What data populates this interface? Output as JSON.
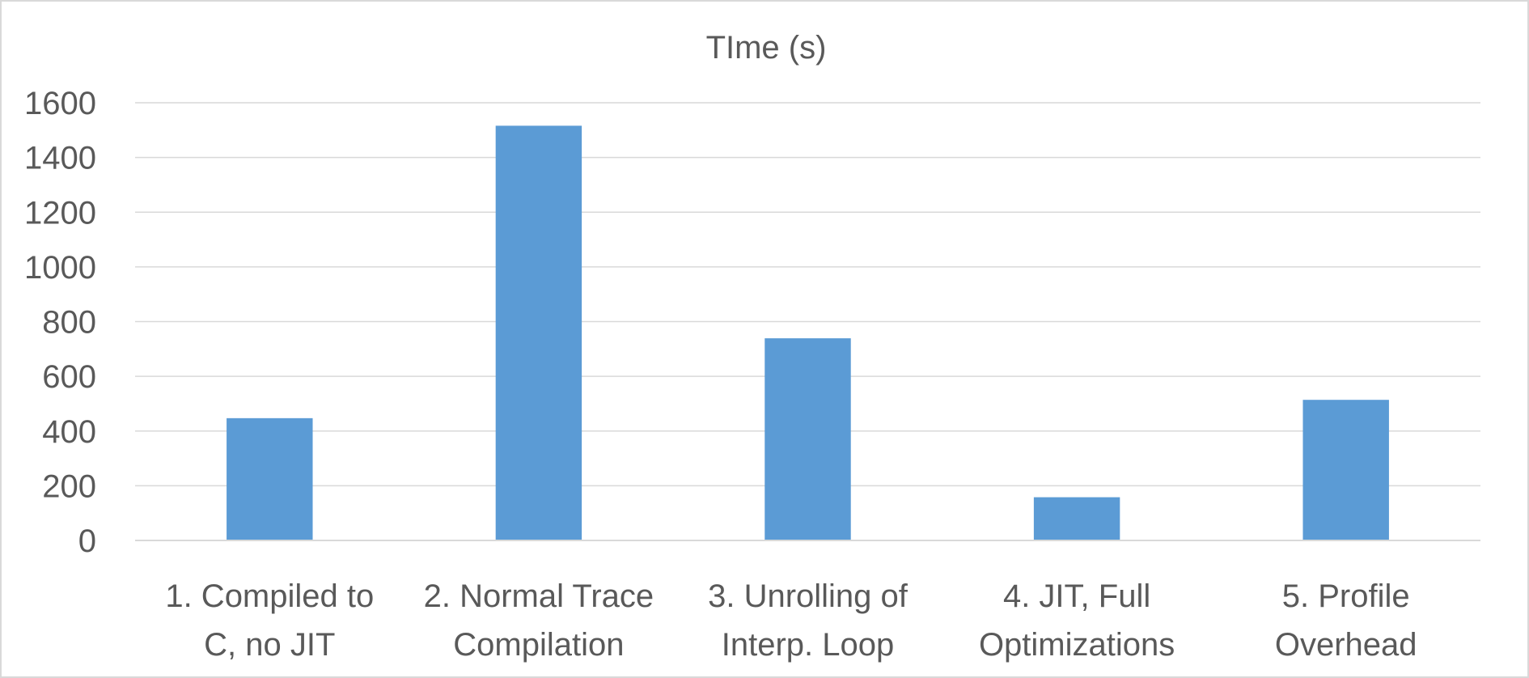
{
  "chart_data": {
    "type": "bar",
    "title": "TIme (s)",
    "xlabel": "",
    "ylabel": "",
    "categories": [
      [
        "1. Compiled to",
        "C, no JIT"
      ],
      [
        "2. Normal Trace",
        "Compilation"
      ],
      [
        "3. Unrolling of",
        "Interp. Loop"
      ],
      [
        "4. JIT, Full",
        "Optimizations"
      ],
      [
        "5. Profile",
        "Overhead"
      ]
    ],
    "values": [
      447,
      1516,
      739,
      158,
      514
    ],
    "ylim": [
      0,
      1600
    ],
    "yticks": [
      0,
      200,
      400,
      600,
      800,
      1000,
      1200,
      1400,
      1600
    ],
    "grid": true,
    "legend": "none",
    "colors": {
      "bar": "#5b9bd5",
      "grid": "#d9d9d9",
      "text": "#595959"
    }
  }
}
